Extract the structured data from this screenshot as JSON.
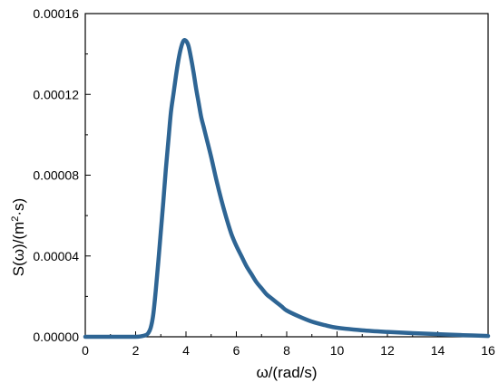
{
  "chart_data": {
    "type": "line",
    "title": "",
    "xlabel": "ω/(rad/s)",
    "ylabel": {
      "pre": "S(ω)/(m",
      "sup": "2",
      "post": "·s)"
    },
    "xlim": [
      0,
      16
    ],
    "ylim": [
      0,
      0.00016
    ],
    "x_ticks": [
      0,
      2,
      4,
      6,
      8,
      10,
      12,
      14,
      16
    ],
    "x_tick_labels": [
      "0",
      "2",
      "4",
      "6",
      "8",
      "10",
      "12",
      "14",
      "16"
    ],
    "y_ticks": [
      0,
      4e-05,
      8e-05,
      0.00012,
      0.00016
    ],
    "y_tick_labels": [
      "0.00000",
      "0.00004",
      "0.00008",
      "0.00012",
      "0.00016"
    ],
    "grid": false,
    "legend": false,
    "series": [
      {
        "color": "#2e6594",
        "x": [
          0,
          1,
          1.5,
          2,
          2.2,
          2.4,
          2.5,
          2.6,
          2.7,
          2.8,
          2.9,
          3.0,
          3.1,
          3.2,
          3.3,
          3.4,
          3.5,
          3.6,
          3.7,
          3.8,
          3.9,
          4.0,
          4.1,
          4.2,
          4.3,
          4.4,
          4.5,
          4.6,
          4.7,
          4.8,
          5.0,
          5.2,
          5.4,
          5.6,
          5.8,
          6.0,
          6.2,
          6.4,
          6.6,
          6.8,
          7.0,
          7.2,
          7.4,
          7.6,
          7.8,
          8.0,
          8.5,
          9.0,
          9.5,
          10,
          11,
          12,
          13,
          14,
          15,
          16
        ],
        "y": [
          0,
          0,
          0,
          0,
          2e-07,
          8e-07,
          1.8e-06,
          4.5e-06,
          1.1e-05,
          2.3e-05,
          3.7e-05,
          5.2e-05,
          6.7e-05,
          8.3e-05,
          9.7e-05,
          0.000111,
          0.00012,
          0.000129,
          0.000137,
          0.000143,
          0.0001465,
          0.0001465,
          0.000144,
          0.000138,
          0.000131,
          0.000123,
          0.000116,
          0.000109,
          0.000104,
          9.9e-05,
          8.9e-05,
          7.8e-05,
          6.8e-05,
          5.9e-05,
          5.1e-05,
          4.5e-05,
          4e-05,
          3.5e-05,
          3.1e-05,
          2.7e-05,
          2.4e-05,
          2.1e-05,
          1.9e-05,
          1.7e-05,
          1.5e-05,
          1.3e-05,
          1e-05,
          7.5e-06,
          5.8e-06,
          4.5e-06,
          3.2e-06,
          2.4e-06,
          1.8e-06,
          1.3e-06,
          8e-07,
          4e-07
        ]
      }
    ]
  }
}
